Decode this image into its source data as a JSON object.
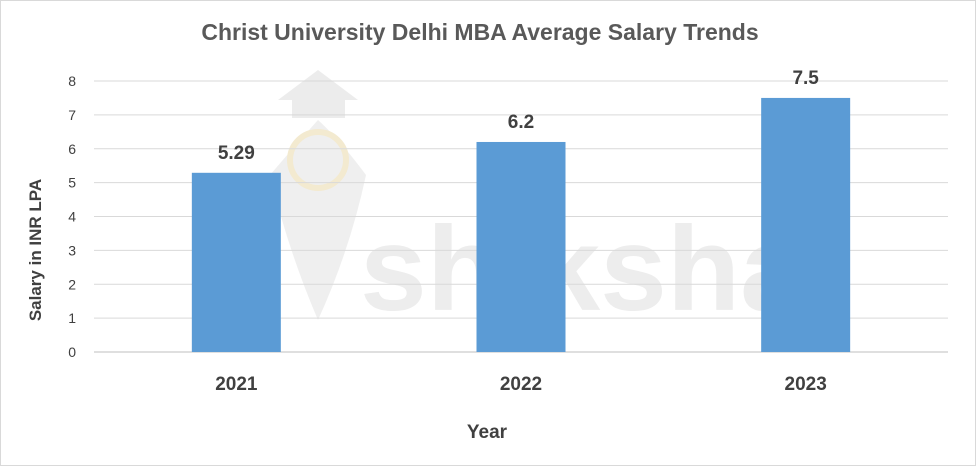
{
  "chart_data": {
    "type": "bar",
    "title": "Christ University Delhi MBA Average Salary Trends",
    "xlabel": "Year",
    "ylabel": "Salary in INR LPA",
    "categories": [
      "2021",
      "2022",
      "2023"
    ],
    "values": [
      5.29,
      6.2,
      7.5
    ],
    "data_labels": [
      "5.29",
      "6.2",
      "7.5"
    ],
    "yticks": [
      "0",
      "1",
      "2",
      "3",
      "4",
      "5",
      "6",
      "7",
      "8"
    ],
    "ylim": [
      0,
      8
    ],
    "grid": true,
    "legend": "none",
    "colors": {
      "bar": "#5b9bd5",
      "gridline": "#d9d9d9",
      "axis": "#bfbfbf",
      "title": "#595959",
      "text": "#404040",
      "watermark": "#e6e6e6"
    }
  },
  "watermark": {
    "text": "shiksha"
  }
}
